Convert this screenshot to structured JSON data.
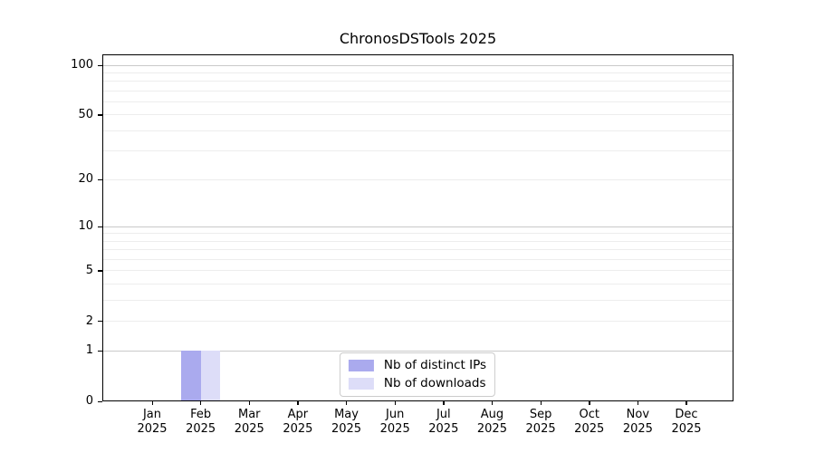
{
  "chart_data": {
    "type": "bar",
    "title": "ChronosDSTools 2025",
    "x_ticks": [
      {
        "month": "Jan",
        "year": "2025"
      },
      {
        "month": "Feb",
        "year": "2025"
      },
      {
        "month": "Mar",
        "year": "2025"
      },
      {
        "month": "Apr",
        "year": "2025"
      },
      {
        "month": "May",
        "year": "2025"
      },
      {
        "month": "Jun",
        "year": "2025"
      },
      {
        "month": "Jul",
        "year": "2025"
      },
      {
        "month": "Aug",
        "year": "2025"
      },
      {
        "month": "Sep",
        "year": "2025"
      },
      {
        "month": "Oct",
        "year": "2025"
      },
      {
        "month": "Nov",
        "year": "2025"
      },
      {
        "month": "Dec",
        "year": "2025"
      }
    ],
    "y_ticks": [
      0,
      1,
      2,
      5,
      10,
      20,
      50,
      100
    ],
    "y_major_gridlines": [
      1,
      10,
      100
    ],
    "y_minor_gridlines": [
      2,
      3,
      4,
      5,
      6,
      7,
      8,
      9,
      20,
      30,
      40,
      50,
      60,
      70,
      80,
      90
    ],
    "y_scale": "log1p",
    "ylim": [
      0,
      115
    ],
    "grid": "horizontal",
    "legend_position": "lower center",
    "series": [
      {
        "name": "Nb of distinct IPs",
        "color": "#aaaaee",
        "values": [
          0,
          1,
          0,
          0,
          0,
          0,
          0,
          0,
          0,
          0,
          0,
          0
        ]
      },
      {
        "name": "Nb of downloads",
        "color": "#ddddf8",
        "values": [
          0,
          1,
          0,
          0,
          0,
          0,
          0,
          0,
          0,
          0,
          0,
          0
        ]
      }
    ]
  }
}
